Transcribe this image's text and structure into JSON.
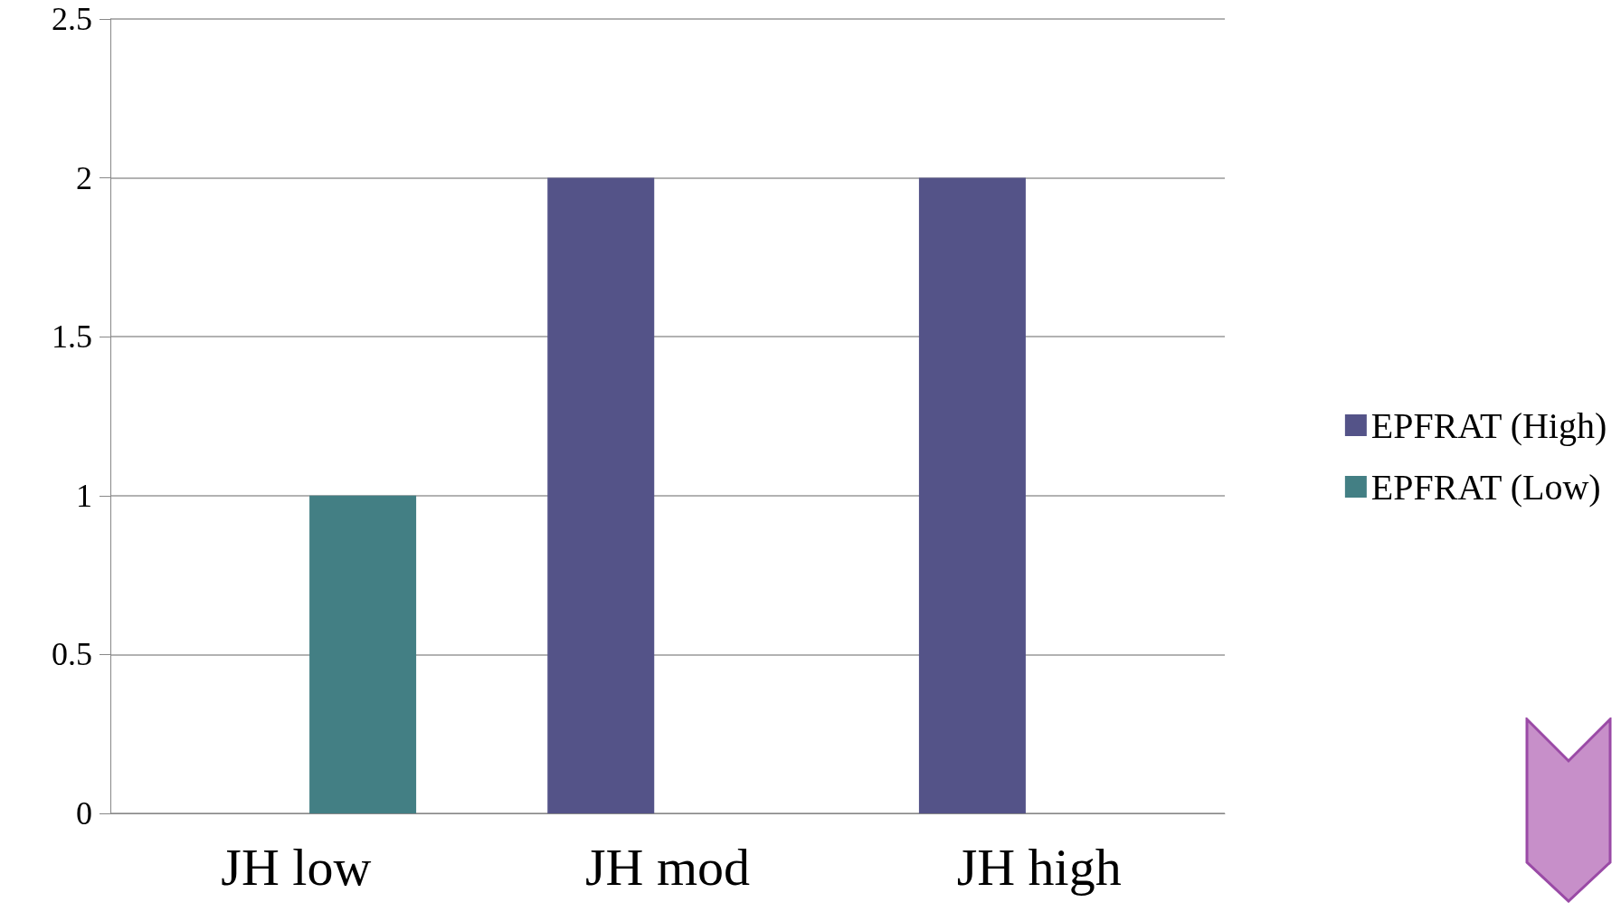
{
  "chart_data": {
    "type": "bar",
    "categories": [
      "JH low",
      "JH mod",
      "JH high"
    ],
    "series": [
      {
        "name": "EPFRAT (High)",
        "color": "#545388",
        "values": [
          null,
          2,
          2
        ]
      },
      {
        "name": "EPFRAT (Low)",
        "color": "#437f84",
        "values": [
          1,
          null,
          null
        ]
      }
    ],
    "ylim": [
      0,
      2.5
    ],
    "yticks": [
      0,
      0.5,
      1,
      1.5,
      2,
      2.5
    ],
    "grid": "y",
    "legend": "right"
  }
}
